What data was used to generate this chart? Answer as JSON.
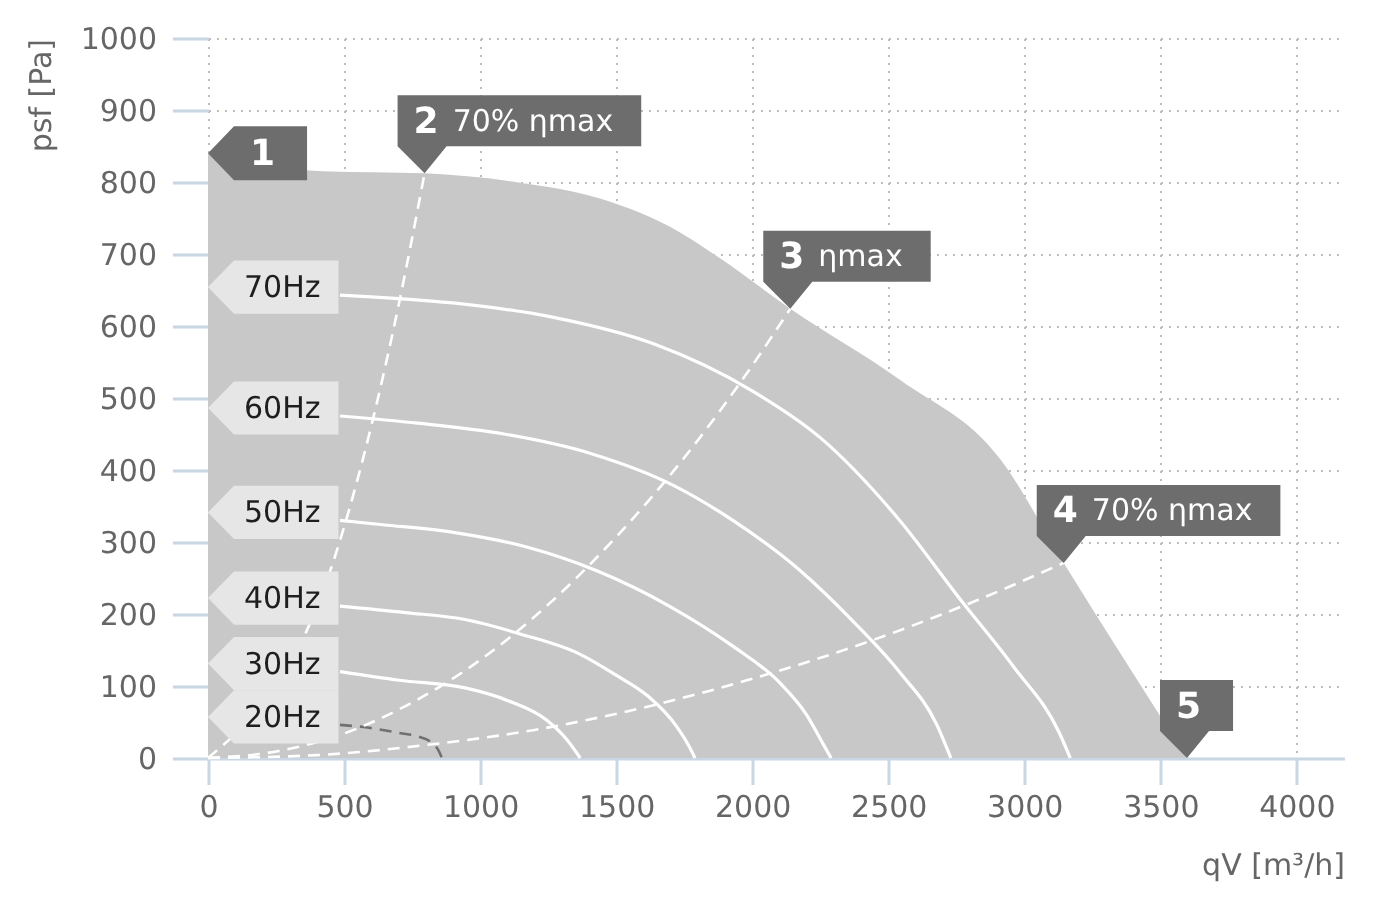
{
  "chart_data": {
    "type": "line",
    "xlabel": "qV [m³/h]",
    "ylabel": "psf [Pa]",
    "xlim": [
      0,
      4175
    ],
    "ylim": [
      0,
      1000
    ],
    "xticks": [
      0,
      500,
      1000,
      1500,
      2000,
      2500,
      3000,
      3500,
      4000
    ],
    "yticks": [
      0,
      100,
      200,
      300,
      400,
      500,
      600,
      700,
      800,
      900,
      1000
    ],
    "grid": true,
    "series": [
      {
        "type": "area",
        "color": "#c8c8c8",
        "x": [
          0,
          420,
          796,
          1147,
          1441,
          1735,
          1882,
          2140,
          2544,
          2912,
          3145,
          3598
        ],
        "values": [
          840,
          815,
          812,
          799,
          777,
          730,
          694,
          624,
          525,
          415,
          271,
          0
        ]
      },
      {
        "name": "70Hz",
        "color": "#ffffff",
        "x": [
          485,
          900,
          1270,
          1640,
          2000,
          2250,
          2540,
          2765,
          2960,
          3130,
          3169
        ],
        "values": [
          643,
          632,
          612,
          575,
          510,
          445,
          331,
          220,
          127,
          34,
          0
        ]
      },
      {
        "name": "60Hz",
        "color": "#ffffff",
        "x": [
          485,
          771,
          1088,
          1406,
          1714,
          1929,
          2177,
          2370,
          2540,
          2680,
          2730
        ],
        "values": [
          475,
          465,
          450,
          423,
          378,
          330,
          260,
          190,
          120,
          45,
          0
        ]
      },
      {
        "name": "50Hz",
        "color": "#ffffff",
        "x": [
          485,
          643,
          907,
          1171,
          1429,
          1700,
          1930,
          2100,
          2200,
          2260,
          2290
        ],
        "values": [
          330,
          324,
          313,
          293,
          260,
          210,
          155,
          105,
          60,
          20,
          0
        ]
      },
      {
        "name": "40Hz",
        "color": "#ffffff",
        "x": [
          485,
          725,
          949,
          1150,
          1368,
          1500,
          1620,
          1720,
          1770,
          1790
        ],
        "values": [
          211,
          202,
          192,
          172,
          144,
          115,
          85,
          45,
          15,
          0
        ]
      },
      {
        "name": "30Hz",
        "color": "#ffffff",
        "x": [
          485,
          703,
          949,
          1100,
          1243,
          1320,
          1368
        ],
        "values": [
          120,
          108,
          97,
          80,
          53,
          25,
          0
        ]
      },
      {
        "name": "20Hz",
        "color": "#707070",
        "line_style": "dashed",
        "x": [
          485,
          571,
          714,
          771,
          820,
          845,
          860
        ],
        "values": [
          46,
          43,
          34,
          30,
          22,
          12,
          0
        ]
      },
      {
        "name": "70% ηmax",
        "color": "#ffffff",
        "line_style": "dashed",
        "x": [
          0,
          490,
          600,
          700,
          796
        ],
        "values": [
          0,
          308,
          461,
          628,
          812
        ]
      },
      {
        "name": "ηmax",
        "color": "#ffffff",
        "line_style": "dashed",
        "x": [
          0,
          250,
          500,
          750,
          1000,
          1250,
          1500,
          1750,
          2000,
          2140
        ],
        "values": [
          0,
          9,
          34,
          77,
          136,
          213,
          307,
          417,
          545,
          624
        ]
      },
      {
        "name": "70% ηmax",
        "color": "#ffffff",
        "line_style": "dashed",
        "x": [
          0,
          400,
          800,
          1200,
          1600,
          2000,
          2400,
          2800,
          3145
        ],
        "values": [
          0,
          4,
          18,
          39,
          70,
          110,
          158,
          215,
          271
        ]
      }
    ],
    "annotations": [
      {
        "text": "1",
        "x": 0,
        "y": 840
      },
      {
        "text": "2",
        "x": 796,
        "y": 812
      },
      {
        "text": "3",
        "x": 2140,
        "y": 624
      },
      {
        "text": "4",
        "x": 3145,
        "y": 271
      },
      {
        "text": "5",
        "x": 3598,
        "y": 0
      }
    ]
  }
}
